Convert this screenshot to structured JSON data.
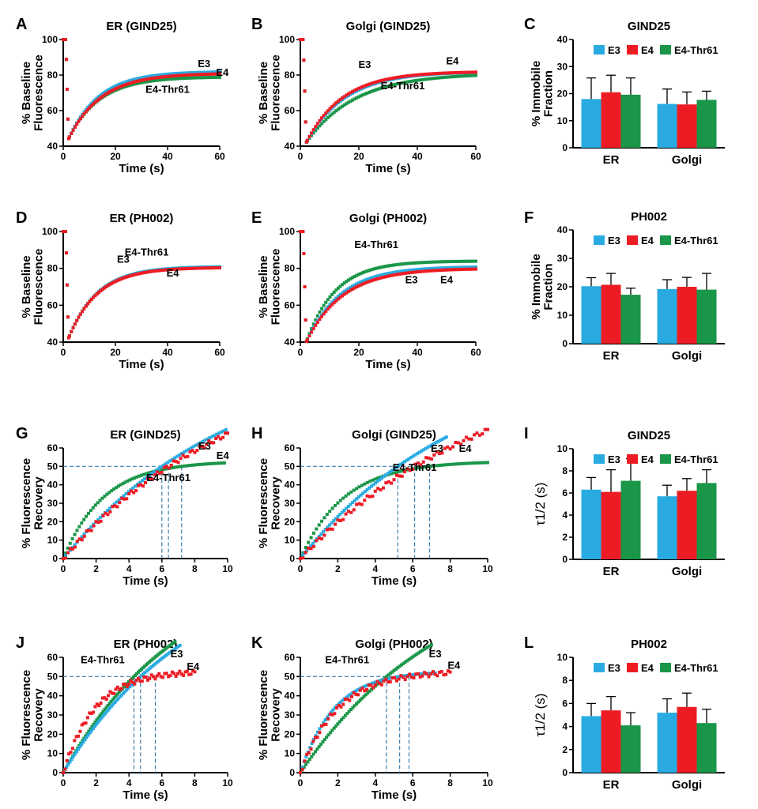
{
  "colors": {
    "E3": "#29abe2",
    "E4": "#ed1c24",
    "E4-Thr61": "#1a9648"
  },
  "panel_letters": [
    "A",
    "B",
    "C",
    "D",
    "E",
    "F",
    "G",
    "H",
    "I",
    "J",
    "K",
    "L"
  ],
  "chart_data": [
    {
      "id": "A",
      "type": "scatter",
      "title": "ER (GIND25)",
      "xlabel": "Time (s)",
      "ylabel": "% Baseline\nFluorescence",
      "xlim": [
        0,
        60
      ],
      "ylim": [
        40,
        100
      ],
      "xticks": [
        0,
        20,
        40,
        60
      ],
      "yticks": [
        40,
        60,
        80,
        100
      ],
      "series": [
        {
          "name": "E3",
          "label": "E3",
          "plateau": 82,
          "k": 0.085
        },
        {
          "name": "E4",
          "label": "E4",
          "plateau": 81,
          "k": 0.08
        },
        {
          "name": "E4-Thr61",
          "label": "E4-Thr61",
          "plateau": 79,
          "k": 0.085
        }
      ],
      "bleach": {
        "start": 100,
        "min": 44,
        "t0": 2
      }
    },
    {
      "id": "B",
      "type": "scatter",
      "title": "Golgi (GIND25)",
      "xlabel": "Time (s)",
      "ylabel": "% Baseline\nFluorescence",
      "xlim": [
        0,
        60
      ],
      "ylim": [
        40,
        100
      ],
      "xticks": [
        0,
        20,
        40,
        60
      ],
      "yticks": [
        40,
        60,
        80,
        100
      ],
      "series": [
        {
          "name": "E3",
          "label": "E3",
          "plateau": 82,
          "k": 0.075
        },
        {
          "name": "E4",
          "label": "E4",
          "plateau": 82,
          "k": 0.08
        },
        {
          "name": "E4-Thr61",
          "label": "E4-Thr61",
          "plateau": 81,
          "k": 0.06
        }
      ],
      "bleach": {
        "start": 100,
        "min": 42,
        "t0": 2
      }
    },
    {
      "id": "C",
      "type": "bar",
      "title": "GIND25",
      "ylabel": "% Immobile\nFraction",
      "categories": [
        "ER",
        "Golgi"
      ],
      "ylim": [
        0,
        40
      ],
      "yticks": [
        0,
        10,
        20,
        30,
        40
      ],
      "series": [
        {
          "name": "E3",
          "values": [
            18,
            16.2
          ],
          "errors": [
            7.8,
            5.5
          ]
        },
        {
          "name": "E4",
          "values": [
            20.5,
            16
          ],
          "errors": [
            6.3,
            4.6
          ]
        },
        {
          "name": "E4-Thr61",
          "values": [
            19.6,
            17.7
          ],
          "errors": [
            6.2,
            3.2
          ]
        }
      ]
    },
    {
      "id": "D",
      "type": "scatter",
      "title": "ER (PH002)",
      "xlabel": "Time (s)",
      "ylabel": "% Baseline\nFluorescence",
      "xlim": [
        0,
        60
      ],
      "ylim": [
        40,
        100
      ],
      "xticks": [
        0,
        20,
        40,
        60
      ],
      "yticks": [
        40,
        60,
        80,
        100
      ],
      "series": [
        {
          "name": "E3",
          "label": "E3",
          "plateau": 81,
          "k": 0.09
        },
        {
          "name": "E4",
          "label": "E4",
          "plateau": 80.5,
          "k": 0.09
        },
        {
          "name": "E4-Thr61",
          "label": "E4-Thr61",
          "plateau": 81,
          "k": 0.09
        }
      ],
      "bleach": {
        "start": 100,
        "min": 42,
        "t0": 2
      }
    },
    {
      "id": "E",
      "type": "scatter",
      "title": "Golgi (PH002)",
      "xlabel": "Time (s)",
      "ylabel": "% Baseline\nFluorescence",
      "xlim": [
        0,
        60
      ],
      "ylim": [
        40,
        100
      ],
      "xticks": [
        0,
        20,
        40,
        60
      ],
      "yticks": [
        40,
        60,
        80,
        100
      ],
      "series": [
        {
          "name": "E3",
          "label": "E3",
          "plateau": 81,
          "k": 0.085
        },
        {
          "name": "E4",
          "label": "E4",
          "plateau": 80,
          "k": 0.08
        },
        {
          "name": "E4-Thr61",
          "label": "E4-Thr61",
          "plateau": 84,
          "k": 0.1
        }
      ],
      "bleach": {
        "start": 100,
        "min": 40,
        "t0": 2
      }
    },
    {
      "id": "F",
      "type": "bar",
      "title": "PH002",
      "ylabel": "% Immobile\nFraction",
      "categories": [
        "ER",
        "Golgi"
      ],
      "ylim": [
        0,
        40
      ],
      "yticks": [
        0,
        10,
        20,
        30,
        40
      ],
      "series": [
        {
          "name": "E3",
          "values": [
            20.2,
            19.2
          ],
          "errors": [
            3,
            3.3
          ]
        },
        {
          "name": "E4",
          "values": [
            20.7,
            20
          ],
          "errors": [
            4,
            3.3
          ]
        },
        {
          "name": "E4-Thr61",
          "values": [
            17.2,
            19
          ],
          "errors": [
            2.3,
            5.7
          ]
        }
      ]
    },
    {
      "id": "G",
      "type": "scatter",
      "title": "ER (GIND25)",
      "xlabel": "Time (s)",
      "ylabel": "% Fluorescence\nRecovery",
      "xlim": [
        0,
        10
      ],
      "ylim": [
        0,
        60
      ],
      "xticks": [
        0,
        2,
        4,
        6,
        8,
        10
      ],
      "yticks": [
        0,
        10,
        20,
        30,
        40,
        50,
        60
      ],
      "series": [
        {
          "name": "E3",
          "label": "E3",
          "t_half": 6,
          "end": 9.9
        },
        {
          "name": "E4",
          "label": "E4",
          "t_half": 6.4,
          "end": 10
        },
        {
          "name": "E4-Thr61",
          "label": "E4-Thr61",
          "t_half": 7.2,
          "end": 9.8
        }
      ],
      "half_line": 50
    },
    {
      "id": "H",
      "type": "scatter",
      "title": "Golgi (GIND25)",
      "xlabel": "Time (s)",
      "ylabel": "% Fluorescence\nRecovery",
      "xlim": [
        0,
        10
      ],
      "ylim": [
        0,
        60
      ],
      "xticks": [
        0,
        2,
        4,
        6,
        8,
        10
      ],
      "yticks": [
        0,
        10,
        20,
        30,
        40,
        50,
        60
      ],
      "series": [
        {
          "name": "E3",
          "label": "E3",
          "t_half": 5.2,
          "end": 7.8
        },
        {
          "name": "E4",
          "label": "E4",
          "t_half": 6.1,
          "end": 10
        },
        {
          "name": "E4-Thr61",
          "label": "E4-Thr61",
          "t_half": 6.9,
          "end": 10
        }
      ],
      "half_line": 50
    },
    {
      "id": "I",
      "type": "bar",
      "title": "GIND25",
      "ylabel": "τ1/2 (s)",
      "categories": [
        "ER",
        "Golgi"
      ],
      "ylim": [
        0,
        10
      ],
      "yticks": [
        0,
        2,
        4,
        6,
        8,
        10
      ],
      "series": [
        {
          "name": "E3",
          "values": [
            6.3,
            5.7
          ],
          "errors": [
            1.1,
            1.0
          ]
        },
        {
          "name": "E4",
          "values": [
            6.1,
            6.2
          ],
          "errors": [
            2.0,
            1.1
          ]
        },
        {
          "name": "E4-Thr61",
          "values": [
            7.1,
            6.9
          ],
          "errors": [
            2.0,
            1.2
          ]
        }
      ]
    },
    {
      "id": "J",
      "type": "scatter",
      "title": "ER (PH002)",
      "xlabel": "Time (s)",
      "ylabel": "% Fluorescence\nRecovery",
      "xlim": [
        0,
        10
      ],
      "ylim": [
        0,
        60
      ],
      "xticks": [
        0,
        2,
        4,
        6,
        8,
        10
      ],
      "yticks": [
        0,
        10,
        20,
        30,
        40,
        50,
        60
      ],
      "series": [
        {
          "name": "E3",
          "label": "E3",
          "t_half": 4.7,
          "end": 7.1
        },
        {
          "name": "E4",
          "label": "E4",
          "t_half": 5.6,
          "end": 8
        },
        {
          "name": "E4-Thr61",
          "label": "E4-Thr61",
          "t_half": 4.3,
          "end": 6.8
        }
      ],
      "half_line": 50
    },
    {
      "id": "K",
      "type": "scatter",
      "title": "Golgi (PH002)",
      "xlabel": "Time (s)",
      "ylabel": "% Fluorescence\nRecovery",
      "xlim": [
        0,
        10
      ],
      "ylim": [
        0,
        60
      ],
      "xticks": [
        0,
        2,
        4,
        6,
        8,
        10
      ],
      "yticks": [
        0,
        10,
        20,
        30,
        40,
        50,
        60
      ],
      "series": [
        {
          "name": "E3",
          "label": "E3",
          "t_half": 5.3,
          "end": 7.2
        },
        {
          "name": "E4",
          "label": "E4",
          "t_half": 5.8,
          "end": 8
        },
        {
          "name": "E4-Thr61",
          "label": "E4-Thr61",
          "t_half": 4.6,
          "end": 7
        }
      ],
      "half_line": 50
    },
    {
      "id": "L",
      "type": "bar",
      "title": "PH002",
      "ylabel": "τ1/2 (s)",
      "categories": [
        "ER",
        "Golgi"
      ],
      "ylim": [
        0,
        10
      ],
      "yticks": [
        0,
        2,
        4,
        6,
        8,
        10
      ],
      "series": [
        {
          "name": "E3",
          "values": [
            4.9,
            5.2
          ],
          "errors": [
            1.1,
            1.2
          ]
        },
        {
          "name": "E4",
          "values": [
            5.4,
            5.7
          ],
          "errors": [
            1.2,
            1.2
          ]
        },
        {
          "name": "E4-Thr61",
          "values": [
            4.1,
            4.3
          ],
          "errors": [
            1.1,
            1.2
          ]
        }
      ]
    }
  ]
}
